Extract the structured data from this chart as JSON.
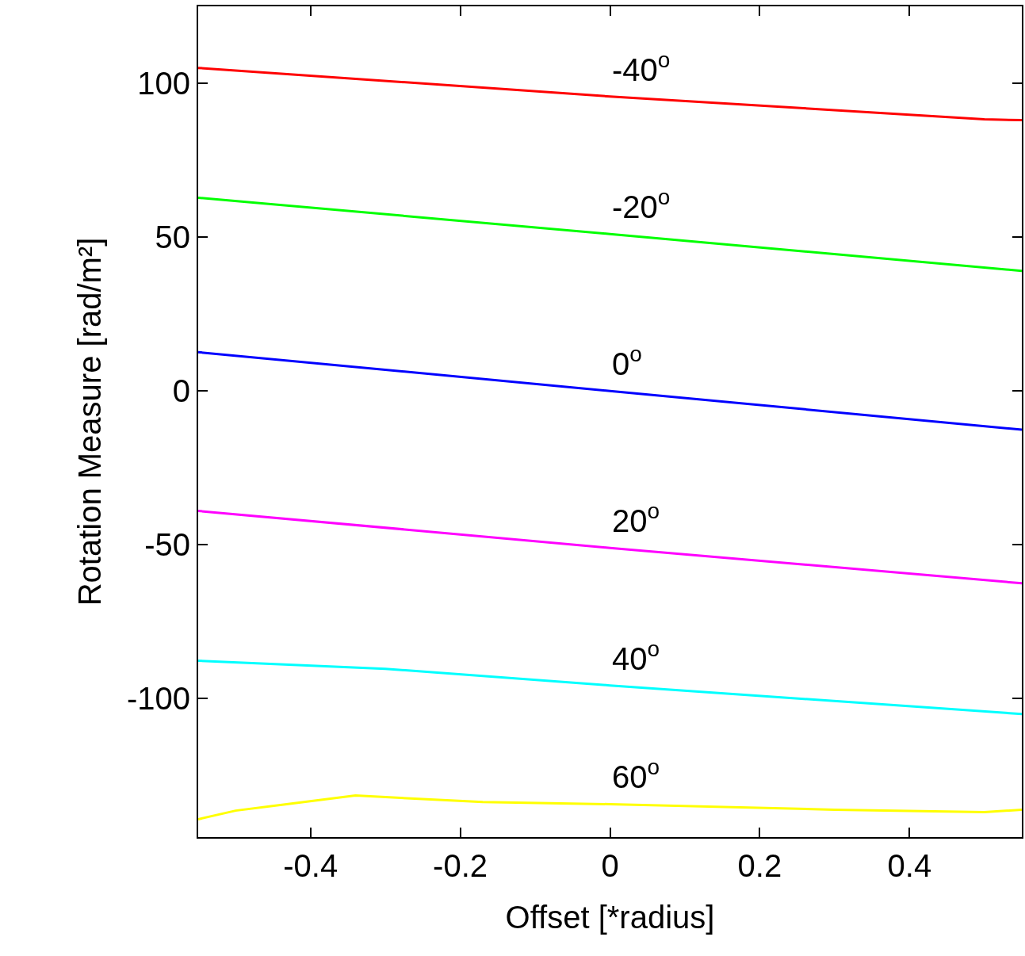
{
  "chart_data": {
    "type": "line",
    "xlabel": "Offset [*radius]",
    "ylabel": "Rotation Measure [rad/m²]",
    "xlim": [
      -0.55,
      0.55
    ],
    "ylim": [
      -145,
      125
    ],
    "xticks": [
      -0.4,
      -0.2,
      0,
      0.2,
      0.4
    ],
    "yticks": [
      -100,
      -50,
      0,
      50,
      100
    ],
    "legend": false,
    "marker": "none",
    "line_style": "solid",
    "series": [
      {
        "name": "-40$^{o}$",
        "color": "#ff0000",
        "x": [
          -0.55,
          0,
          0.5,
          0.55
        ],
        "values": [
          105,
          95.7,
          88.3,
          88
        ]
      },
      {
        "name": "-20$^{o}$",
        "color": "#00ff00",
        "x": [
          -0.55,
          0,
          0.55
        ],
        "values": [
          62.8,
          51,
          39
        ]
      },
      {
        "name": "0$^{o}$",
        "color": "#0000ff",
        "x": [
          -0.55,
          0,
          0.55
        ],
        "values": [
          12.6,
          0,
          -12.6
        ]
      },
      {
        "name": "20$^{o}$",
        "color": "#ff00ff",
        "x": [
          -0.55,
          0,
          0.55
        ],
        "values": [
          -39,
          -51,
          -62.5
        ]
      },
      {
        "name": "40$^{o}$",
        "color": "#00ffff",
        "x": [
          -0.55,
          -0.3,
          0,
          0.55
        ],
        "values": [
          -87.7,
          -90.3,
          -95.7,
          -105
        ]
      },
      {
        "name": "60$^{o}$",
        "color": "#ffff00",
        "x": [
          -0.55,
          -0.5,
          -0.34,
          -0.17,
          0,
          0.3,
          0.5,
          0.55
        ],
        "values": [
          -139.2,
          -136.4,
          -131.5,
          -133.6,
          -134.3,
          -136.1,
          -136.9,
          -136.1
        ]
      }
    ]
  }
}
